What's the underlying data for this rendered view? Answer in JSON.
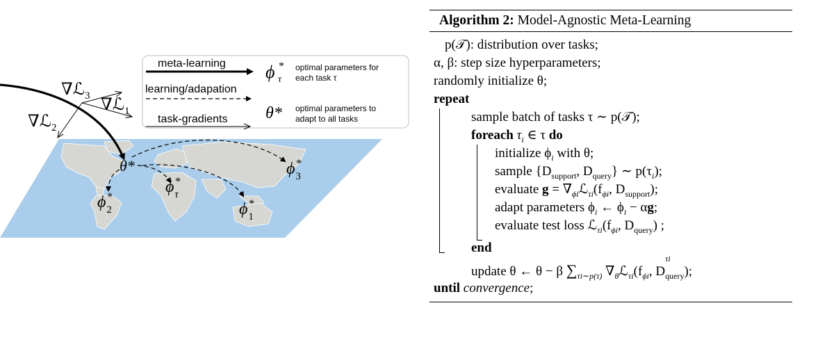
{
  "diagram": {
    "legend": {
      "meta_learning": "meta-learning",
      "learning_adaptation": "learning/adapation",
      "task_gradients": "task-gradients",
      "phi_tau_star_desc_line1": "optimal parameters for",
      "phi_tau_star_desc_line2": "each task τ",
      "theta_star_desc_line1": "optimal parameters to",
      "theta_star_desc_line2": "adapt to all tasks",
      "phi_tau_symbol": "ϕ",
      "phi_tau_sup": "*",
      "phi_tau_sub": "τ",
      "theta_symbol": "θ*"
    },
    "gradients": {
      "grad_L1": "∇ℒ",
      "grad_L1_sub": "1",
      "grad_L2": "∇ℒ",
      "grad_L2_sub": "2",
      "grad_L3": "∇ℒ",
      "grad_L3_sub": "3"
    },
    "map_labels": {
      "theta_star": "θ*",
      "phi": "ϕ",
      "phi1_sub": "1",
      "phi2_sub": "2",
      "phi3_sub": "3",
      "phitau_sub": "τ",
      "star": "*"
    },
    "colors": {
      "map_water": "#a9cdea",
      "land": "#d6d6d2",
      "land_edge": "#ffffff"
    }
  },
  "algorithm": {
    "title_prefix": "Algorithm 2:",
    "title_text": " Model-Agnostic Meta-Learning",
    "lines": {
      "l1": "p(𝒯): distribution over tasks;",
      "l2": "α, β: step size hyperparameters;",
      "l3": "randomly initialize θ;",
      "repeat": "repeat",
      "l5": "sample batch of tasks τ ∼ p(𝒯);",
      "foreach_kw": "foreach",
      "foreach_mid": " τ",
      "foreach_sub": "i",
      "foreach_rest": " ∈ τ ",
      "do_kw": "do",
      "l7": "initialize ϕ",
      "l7_sub": "i",
      "l7_rest": " with θ;",
      "l8a": "sample {D",
      "l8_sub1": "support",
      "l8b": ", D",
      "l8_sub2": "query",
      "l8c": "} ∼ p(τ",
      "l8_sub3": "i",
      "l8d": ");",
      "l9a": "evaluate ",
      "l9_g": "g",
      "l9b": " = ∇",
      "l9_sub1": "ϕ",
      "l9_sub1b": "i",
      "l9c": "ℒ",
      "l9_sub2": "τ",
      "l9_sub2b": "i",
      "l9d": "(f",
      "l9_sub3": "ϕ",
      "l9_sub3b": "i",
      "l9e": ", D",
      "l9_sub4": "support",
      "l9f": ");",
      "l10a": "adapt parameters ϕ",
      "l10_sub1": "i",
      "l10b": " ← ϕ",
      "l10_sub2": "i",
      "l10c": " − α",
      "l10_g": "g",
      "l10d": ";",
      "l11a": "evaluate test loss ℒ",
      "l11_sub1": "τ",
      "l11_sub1b": "i",
      "l11b": "(f",
      "l11_sub2": "ϕ",
      "l11_sub2b": "i",
      "l11c": ", D",
      "l11_sub3": "query",
      "l11d": ") ;",
      "end_kw": "end",
      "l13a": "update θ ← θ − β ",
      "l13_sum": "∑",
      "l13_sumsub": "τi∼p(τ)",
      "l13b": " ∇",
      "l13_sub1": "θ",
      "l13c": "ℒ",
      "l13_sub2": "τ",
      "l13_sub2b": "i",
      "l13d": "(f",
      "l13_sub3": "ϕ",
      "l13_sub3b": "i",
      "l13e": ", D",
      "l13_sup": "τi",
      "l13_sub4": "query",
      "l13f": ");",
      "until_kw": "until",
      "until_rest": " convergence",
      "until_end": ";"
    }
  }
}
